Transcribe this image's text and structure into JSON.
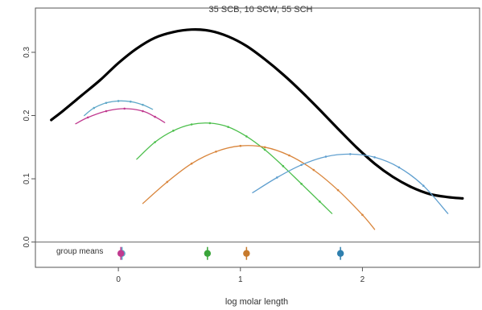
{
  "chart_data": {
    "type": "line",
    "title": "35 SCB, 10 SCW, 55 SCH",
    "xlabel": "log molar length",
    "ylabel": "",
    "xlim": [
      -0.68,
      2.96
    ],
    "ylim": [
      -0.04,
      0.37
    ],
    "x_ticks": [
      0,
      1,
      2
    ],
    "x_tick_labels": [
      "0",
      "1",
      "2"
    ],
    "y_ticks": [
      0.0,
      0.1,
      0.2,
      0.3
    ],
    "y_tick_labels": [
      "0.0",
      "0.1",
      "0.2",
      "0.3"
    ],
    "grid": false,
    "legend": "none",
    "baseline_y": 0.0,
    "group_means_label": "group means",
    "series": [
      {
        "color": "#000000",
        "kind": "overall",
        "x": [
          -0.55,
          -0.45,
          -0.3,
          -0.15,
          0.0,
          0.15,
          0.3,
          0.45,
          0.6,
          0.75,
          0.9,
          1.05,
          1.2,
          1.35,
          1.5,
          1.65,
          1.8,
          1.95,
          2.1,
          2.25,
          2.4,
          2.55,
          2.7,
          2.82
        ],
        "y": [
          0.193,
          0.208,
          0.232,
          0.256,
          0.283,
          0.306,
          0.323,
          0.332,
          0.336,
          0.334,
          0.325,
          0.31,
          0.289,
          0.265,
          0.238,
          0.209,
          0.179,
          0.15,
          0.124,
          0.103,
          0.087,
          0.076,
          0.071,
          0.069
        ]
      },
      {
        "color": "#5fa8c8",
        "kind": "group",
        "x": [
          -0.28,
          -0.2,
          -0.1,
          0.0,
          0.1,
          0.2,
          0.28
        ],
        "y": [
          0.2,
          0.212,
          0.22,
          0.223,
          0.222,
          0.217,
          0.21
        ]
      },
      {
        "color": "#c0398f",
        "kind": "group",
        "x": [
          -0.35,
          -0.25,
          -0.1,
          0.05,
          0.2,
          0.3,
          0.38
        ],
        "y": [
          0.187,
          0.197,
          0.207,
          0.211,
          0.207,
          0.198,
          0.189
        ]
      },
      {
        "color": "#4cbf4c",
        "kind": "group",
        "x": [
          0.15,
          0.3,
          0.45,
          0.6,
          0.75,
          0.9,
          1.05,
          1.2,
          1.35,
          1.5,
          1.65,
          1.75
        ],
        "y": [
          0.131,
          0.158,
          0.176,
          0.186,
          0.188,
          0.182,
          0.167,
          0.146,
          0.12,
          0.092,
          0.064,
          0.045
        ]
      },
      {
        "color": "#d9853b",
        "kind": "group",
        "x": [
          0.2,
          0.4,
          0.6,
          0.8,
          1.0,
          1.2,
          1.4,
          1.6,
          1.8,
          2.0,
          2.1
        ],
        "y": [
          0.061,
          0.095,
          0.124,
          0.143,
          0.152,
          0.15,
          0.137,
          0.114,
          0.082,
          0.043,
          0.02
        ]
      },
      {
        "color": "#5f9fcf",
        "kind": "group",
        "x": [
          1.1,
          1.3,
          1.5,
          1.7,
          1.9,
          2.1,
          2.3,
          2.5,
          2.7
        ],
        "y": [
          0.078,
          0.102,
          0.122,
          0.135,
          0.139,
          0.134,
          0.118,
          0.089,
          0.045
        ]
      }
    ],
    "means": [
      {
        "x": 0.03,
        "color": "#5fa8c8",
        "label": ""
      },
      {
        "x": 0.02,
        "color": "#c0398f",
        "label": ""
      },
      {
        "x": 0.73,
        "color": "#3aa53a",
        "label": ""
      },
      {
        "x": 1.05,
        "color": "#c77a2c",
        "label": ""
      },
      {
        "x": 1.82,
        "color": "#2f7fae",
        "label": ""
      }
    ]
  }
}
